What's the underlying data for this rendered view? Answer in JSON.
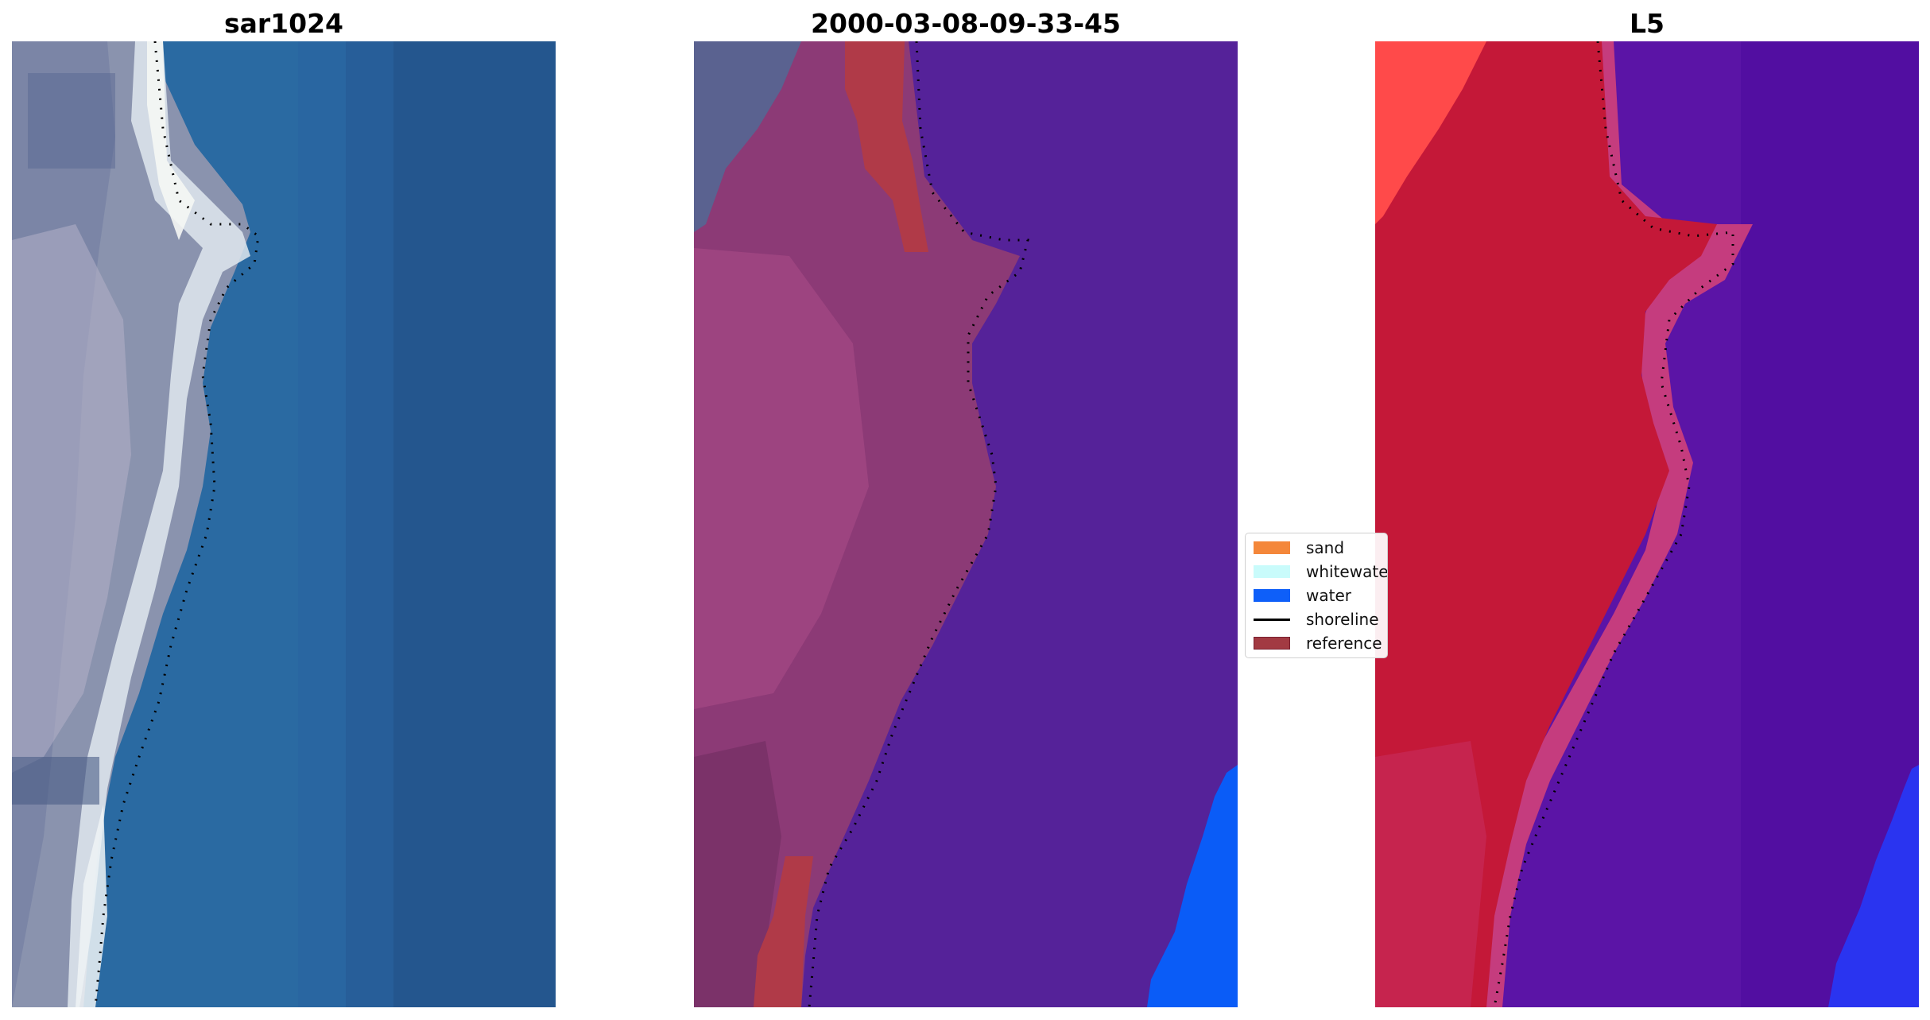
{
  "panels": [
    {
      "title": "sar1024",
      "style": "rgb-image"
    },
    {
      "title": "2000-03-08-09-33-45",
      "style": "classified-overlay"
    },
    {
      "title": "L5",
      "style": "probability-map"
    }
  ],
  "legend": {
    "placement": "center",
    "entries": [
      {
        "label": "sand",
        "type": "patch",
        "color": "#f4873a"
      },
      {
        "label": "whitewater",
        "type": "patch",
        "color": "#c9fbfb"
      },
      {
        "label": "water",
        "type": "patch",
        "color": "#0e5ff9"
      },
      {
        "label": "shoreline",
        "type": "line",
        "color": "#000000"
      },
      {
        "label": "reference",
        "type": "patch",
        "color": "#a23a42"
      }
    ]
  },
  "colors": {
    "sea_rgb": "#2a6ba0",
    "land_rgb": "#8a93ad",
    "overlay_land": "#8e3b75",
    "overlay_water": "#552299",
    "overlay_reference": "#b03a48",
    "overlay_blue": "#0a5cf7",
    "prob_land": "#c41838",
    "prob_water": "#5b14a6",
    "prob_edge": "#e14a4a",
    "prob_blue": "#2a34f0"
  }
}
